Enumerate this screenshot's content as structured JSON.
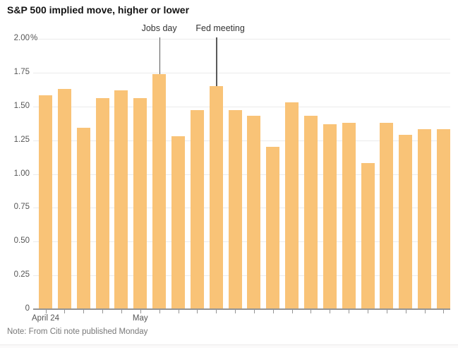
{
  "header": {
    "title": "S&P 500 implied move, higher or lower"
  },
  "footer": {
    "note": "Note: From Citi note published Monday"
  },
  "colors": {
    "bar": "#f9c377",
    "grid": "#ebebeb",
    "axis": "#949494",
    "annotation_line": "#5a5a5a",
    "axis_label_text": "#555555",
    "title_text": "#141414",
    "note_text": "#787878"
  },
  "chart_data": {
    "type": "bar",
    "title": "S&P 500 implied move, higher or lower",
    "xlabel": "",
    "ylabel": "",
    "unit": "%",
    "ylim": [
      0,
      2
    ],
    "grid": true,
    "legend": false,
    "yticks": [
      "2.00%",
      "1.75",
      "1.50",
      "1.25",
      "1.00",
      "0.75",
      "0.50",
      "0.25",
      "0"
    ],
    "x_axis_labels": [
      {
        "bar_index": 0,
        "label": "April 24"
      },
      {
        "bar_index": 5,
        "label": "May"
      }
    ],
    "annotations": [
      {
        "label": "Jobs day",
        "bar_index": 6
      },
      {
        "label": "Fed meeting",
        "bar_index": 9
      }
    ],
    "values": [
      1.58,
      1.63,
      1.34,
      1.56,
      1.62,
      1.56,
      1.74,
      1.28,
      1.47,
      1.65,
      1.47,
      1.43,
      1.2,
      1.53,
      1.43,
      1.37,
      1.38,
      1.08,
      1.38,
      1.29,
      1.33,
      1.33
    ]
  }
}
